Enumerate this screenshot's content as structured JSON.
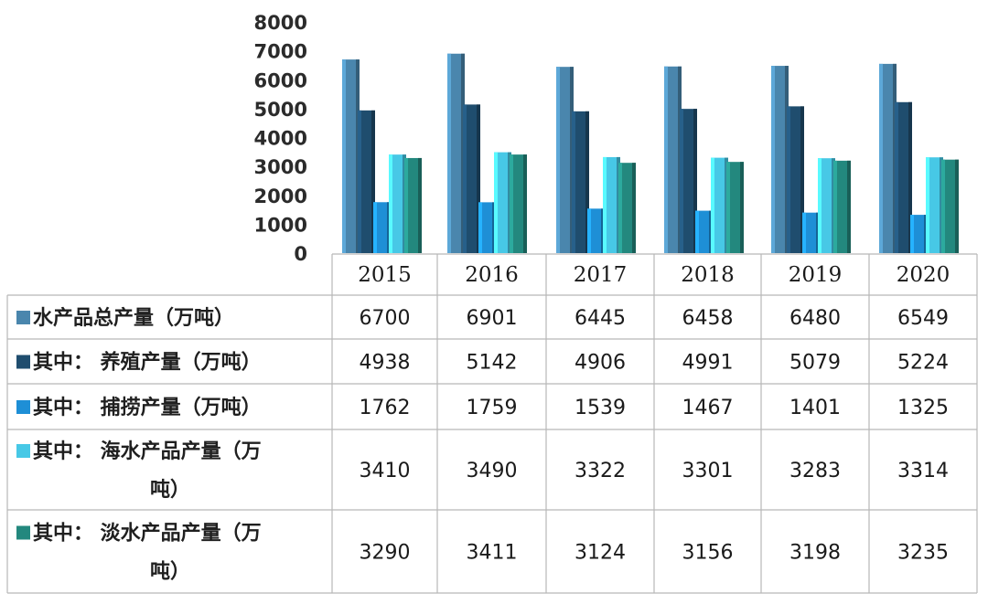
{
  "chart_data": {
    "type": "bar",
    "categories": [
      "2015",
      "2016",
      "2017",
      "2018",
      "2019",
      "2020"
    ],
    "ylim": [
      0,
      8000
    ],
    "yticks": [
      0,
      1000,
      2000,
      3000,
      4000,
      5000,
      6000,
      7000,
      8000
    ],
    "legend_placement": "table-rows-below",
    "grid": false,
    "series": [
      {
        "name": "水产品总产量（万吨）",
        "name_lines": [
          "水产品总产量（万吨）"
        ],
        "color": "#4a86ad",
        "values": [
          6700,
          6901,
          6445,
          6458,
          6480,
          6549
        ]
      },
      {
        "name": "其中：养殖产量（万吨）",
        "name_lines": [
          "其中：  养殖产量（万吨）"
        ],
        "color": "#1f4d6e",
        "values": [
          4938,
          5142,
          4906,
          4991,
          5079,
          5224
        ]
      },
      {
        "name": "其中：捕捞产量（万吨）",
        "name_lines": [
          "其中：  捕捞产量（万吨）"
        ],
        "color": "#1e8fd6",
        "values": [
          1762,
          1759,
          1539,
          1467,
          1401,
          1325
        ]
      },
      {
        "name": "其中：海水产品产量（万吨）",
        "name_lines": [
          "其中：  海水产品产量（万",
          "吨）"
        ],
        "color": "#47c8e6",
        "values": [
          3410,
          3490,
          3322,
          3301,
          3283,
          3314
        ]
      },
      {
        "name": "其中：淡水产品产量（万吨）",
        "name_lines": [
          "其中：  淡水产品产量（万",
          "吨）"
        ],
        "color": "#23887e",
        "values": [
          3290,
          3411,
          3124,
          3156,
          3198,
          3235
        ]
      }
    ]
  }
}
